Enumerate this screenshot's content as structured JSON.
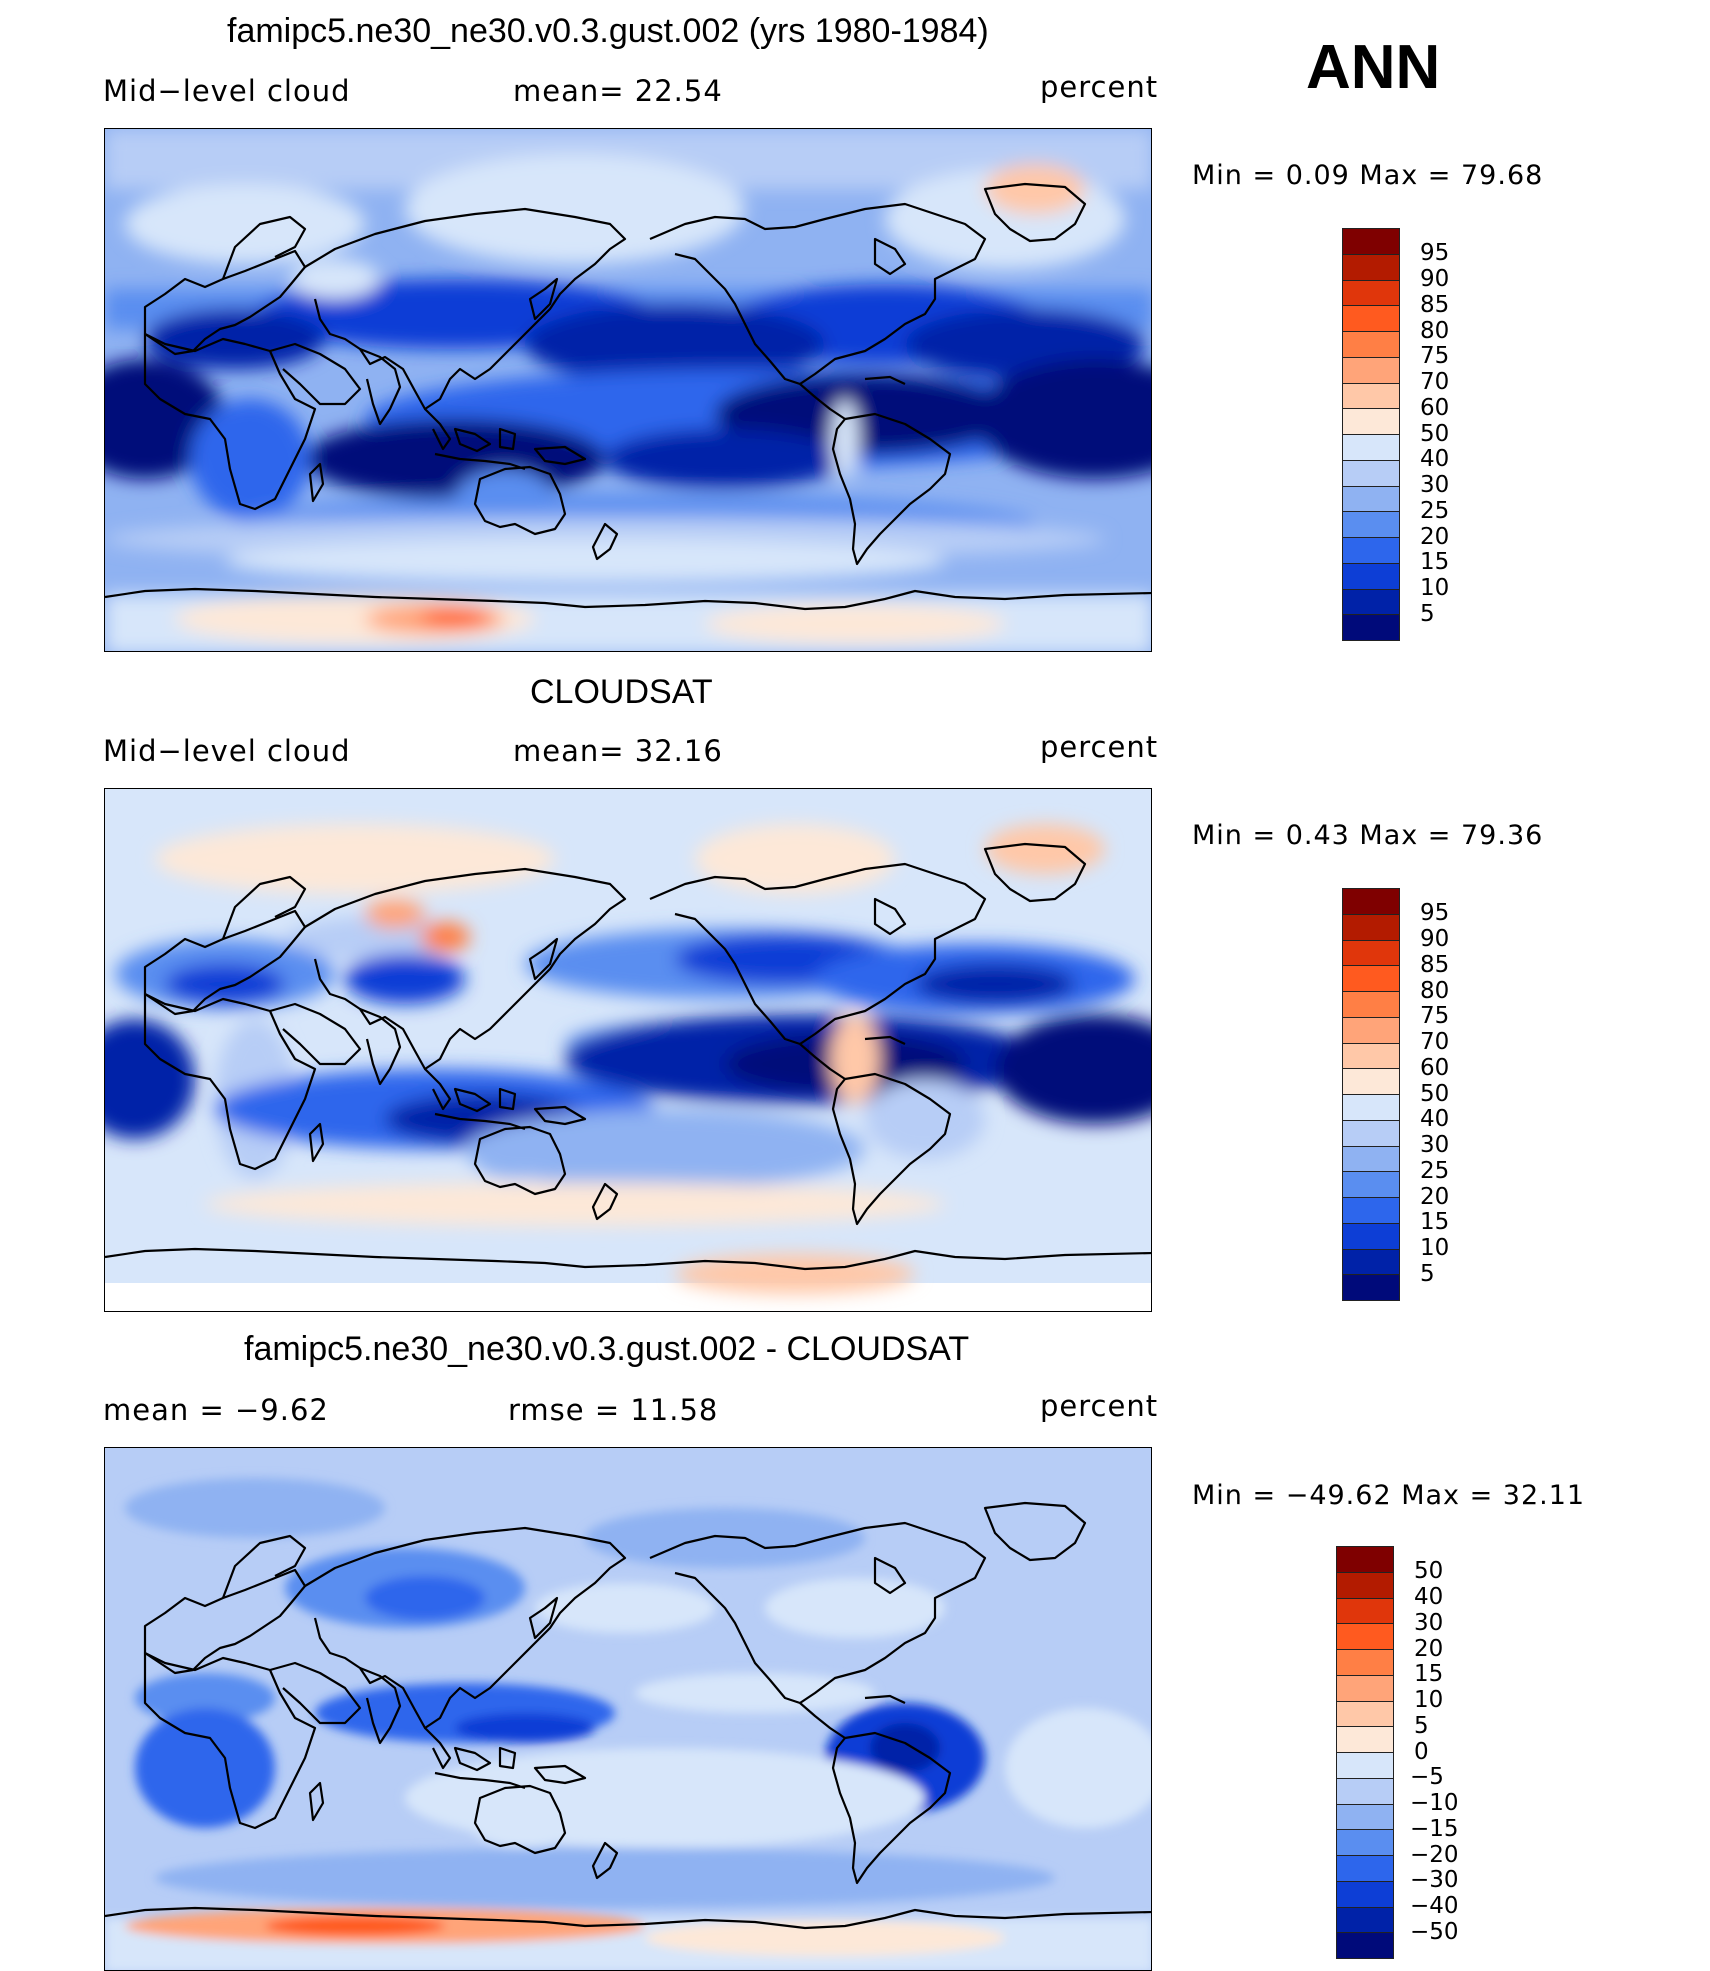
{
  "season": "ANN",
  "panels": [
    {
      "title": "famipc5.ne30_ne30.v0.3.gust.002 (yrs 1980-1984)",
      "left_label": "Mid−level cloud",
      "center_label": "mean=   22.54",
      "right_label": "percent",
      "minmax": "Min  =     0.09  Max  =    79.68",
      "colorbar": {
        "colors": [
          "#7f0000",
          "#b31b00",
          "#e0360b",
          "#ff5a1f",
          "#ff7f45",
          "#ffa479",
          "#ffc8a8",
          "#fde8d8",
          "#d7e6fa",
          "#b7cdf6",
          "#8fb2f2",
          "#5a8ef0",
          "#2d66ec",
          "#0d3ed6",
          "#0022a8",
          "#000a7a"
        ],
        "ticks": [
          "95",
          "90",
          "85",
          "80",
          "75",
          "70",
          "60",
          "50",
          "40",
          "30",
          "25",
          "20",
          "15",
          "10",
          "5"
        ]
      }
    },
    {
      "title": "CLOUDSAT",
      "left_label": "Mid−level cloud",
      "center_label": "mean=   32.16",
      "right_label": "percent",
      "minmax": "Min  =     0.43  Max  =    79.36",
      "colorbar": {
        "colors": [
          "#7f0000",
          "#b31b00",
          "#e0360b",
          "#ff5a1f",
          "#ff7f45",
          "#ffa479",
          "#ffc8a8",
          "#fde8d8",
          "#d7e6fa",
          "#b7cdf6",
          "#8fb2f2",
          "#5a8ef0",
          "#2d66ec",
          "#0d3ed6",
          "#0022a8",
          "#000a7a"
        ],
        "ticks": [
          "95",
          "90",
          "85",
          "80",
          "75",
          "70",
          "60",
          "50",
          "40",
          "30",
          "25",
          "20",
          "15",
          "10",
          "5"
        ]
      }
    },
    {
      "title": "famipc5.ne30_ne30.v0.3.gust.002 - CLOUDSAT",
      "left_label": "mean  =    −9.62",
      "center_label": "rmse  =    11.58",
      "right_label": "percent",
      "minmax": "Min  = −49.62  Max  =    32.11",
      "colorbar": {
        "colors": [
          "#7f0000",
          "#b31b00",
          "#e0360b",
          "#ff5a1f",
          "#ff7f45",
          "#ffa479",
          "#ffc8a8",
          "#fde8d8",
          "#d7e6fa",
          "#b7cdf6",
          "#8fb2f2",
          "#5a8ef0",
          "#2d66ec",
          "#0d3ed6",
          "#0022a8",
          "#000a7a"
        ],
        "ticks": [
          "50",
          "40",
          "30",
          "20",
          "15",
          "10",
          "5",
          "0",
          "−5",
          "−10",
          "−15",
          "−20",
          "−30",
          "−40",
          "−50"
        ]
      }
    }
  ]
}
